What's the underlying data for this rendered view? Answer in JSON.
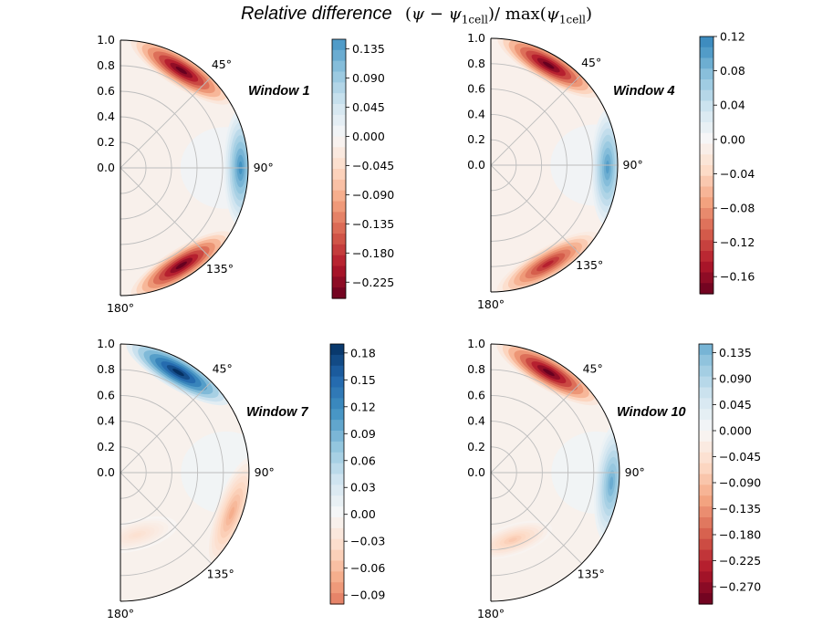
{
  "figure": {
    "title": "Relative difference",
    "title_formula": {
      "open": "(",
      "psi": "ψ",
      "minus": " − ",
      "sub": "1cell",
      "close": ")",
      "div_max": "/ max(",
      "close2": ")"
    }
  },
  "chart_data": [
    {
      "type": "heatmap",
      "subtype": "polar-contourf-half",
      "label": "Window 1",
      "radial_ticks": [
        "0.0",
        "0.2",
        "0.4",
        "0.6",
        "0.8",
        "1.0"
      ],
      "radial_range": [
        0,
        1
      ],
      "angle_ticks": [
        "45°",
        "90°",
        "135°",
        "180°"
      ],
      "theta_range_deg": [
        0,
        180
      ],
      "colormap": "RdBu",
      "colorbar_range": [
        -0.25,
        0.15
      ],
      "colorbar_ticks": [
        "0.135",
        "0.090",
        "0.045",
        "0.000",
        "−0.045",
        "−0.090",
        "−0.135",
        "−0.180",
        "−0.225"
      ],
      "colorbar_tick_values": [
        0.135,
        0.09,
        0.045,
        0.0,
        -0.045,
        -0.09,
        -0.135,
        -0.18,
        -0.225
      ],
      "features": [
        {
          "theta_deg": 32,
          "r": 0.9,
          "value": -0.25
        },
        {
          "theta_deg": 90,
          "r": 0.94,
          "value": 0.15
        },
        {
          "theta_deg": 148,
          "r": 0.9,
          "value": -0.25
        }
      ]
    },
    {
      "type": "heatmap",
      "subtype": "polar-contourf-half",
      "label": "Window 4",
      "radial_ticks": [
        "0.0",
        "0.2",
        "0.4",
        "0.6",
        "0.8",
        "1.0"
      ],
      "radial_range": [
        0,
        1
      ],
      "angle_ticks": [
        "45°",
        "90°",
        "135°",
        "180°"
      ],
      "theta_range_deg": [
        0,
        180
      ],
      "colormap": "RdBu",
      "colorbar_range": [
        -0.18,
        0.12
      ],
      "colorbar_ticks": [
        "0.12",
        "0.08",
        "0.04",
        "0.00",
        "−0.04",
        "−0.08",
        "−0.12",
        "−0.16"
      ],
      "colorbar_tick_values": [
        0.12,
        0.08,
        0.04,
        0.0,
        -0.04,
        -0.08,
        -0.12,
        -0.16
      ],
      "features": [
        {
          "theta_deg": 30,
          "r": 0.91,
          "value": -0.18
        },
        {
          "theta_deg": 91,
          "r": 0.92,
          "value": 0.1
        },
        {
          "theta_deg": 150,
          "r": 0.9,
          "value": -0.14
        }
      ]
    },
    {
      "type": "heatmap",
      "subtype": "polar-contourf-half",
      "label": "Window 7",
      "radial_ticks": [
        "0.0",
        "0.2",
        "0.4",
        "0.6",
        "0.8",
        "1.0"
      ],
      "radial_range": [
        0,
        1
      ],
      "angle_ticks": [
        "45°",
        "90°",
        "135°",
        "180°"
      ],
      "theta_range_deg": [
        0,
        180
      ],
      "colormap": "RdBu",
      "colorbar_range": [
        -0.1,
        0.19
      ],
      "colorbar_ticks": [
        "0.18",
        "0.15",
        "0.12",
        "0.09",
        "0.06",
        "0.03",
        "0.00",
        "−0.03",
        "−0.06",
        "−0.09"
      ],
      "colorbar_tick_values": [
        0.18,
        0.15,
        0.12,
        0.09,
        0.06,
        0.03,
        0.0,
        -0.03,
        -0.06,
        -0.09
      ],
      "features": [
        {
          "theta_deg": 30,
          "r": 0.9,
          "value": 0.19
        },
        {
          "theta_deg": 110,
          "r": 0.92,
          "value": -0.07
        },
        {
          "theta_deg": 165,
          "r": 0.5,
          "value": -0.03
        }
      ]
    },
    {
      "type": "heatmap",
      "subtype": "polar-contourf-half",
      "label": "Window 10",
      "radial_ticks": [
        "0.0",
        "0.2",
        "0.4",
        "0.6",
        "0.8",
        "1.0"
      ],
      "radial_range": [
        0,
        1
      ],
      "angle_ticks": [
        "45°",
        "90°",
        "135°",
        "180°"
      ],
      "theta_range_deg": [
        0,
        180
      ],
      "colormap": "RdBu",
      "colorbar_range": [
        -0.3,
        0.15
      ],
      "colorbar_ticks": [
        "0.135",
        "0.090",
        "0.045",
        "0.000",
        "−0.045",
        "−0.090",
        "−0.135",
        "−0.180",
        "−0.225",
        "−0.270"
      ],
      "colorbar_tick_values": [
        0.135,
        0.09,
        0.045,
        0.0,
        -0.045,
        -0.09,
        -0.135,
        -0.18,
        -0.225,
        -0.27
      ],
      "features": [
        {
          "theta_deg": 30,
          "r": 0.9,
          "value": -0.3
        },
        {
          "theta_deg": 95,
          "r": 0.94,
          "value": 0.15
        },
        {
          "theta_deg": 162,
          "r": 0.55,
          "value": -0.08
        }
      ]
    }
  ]
}
